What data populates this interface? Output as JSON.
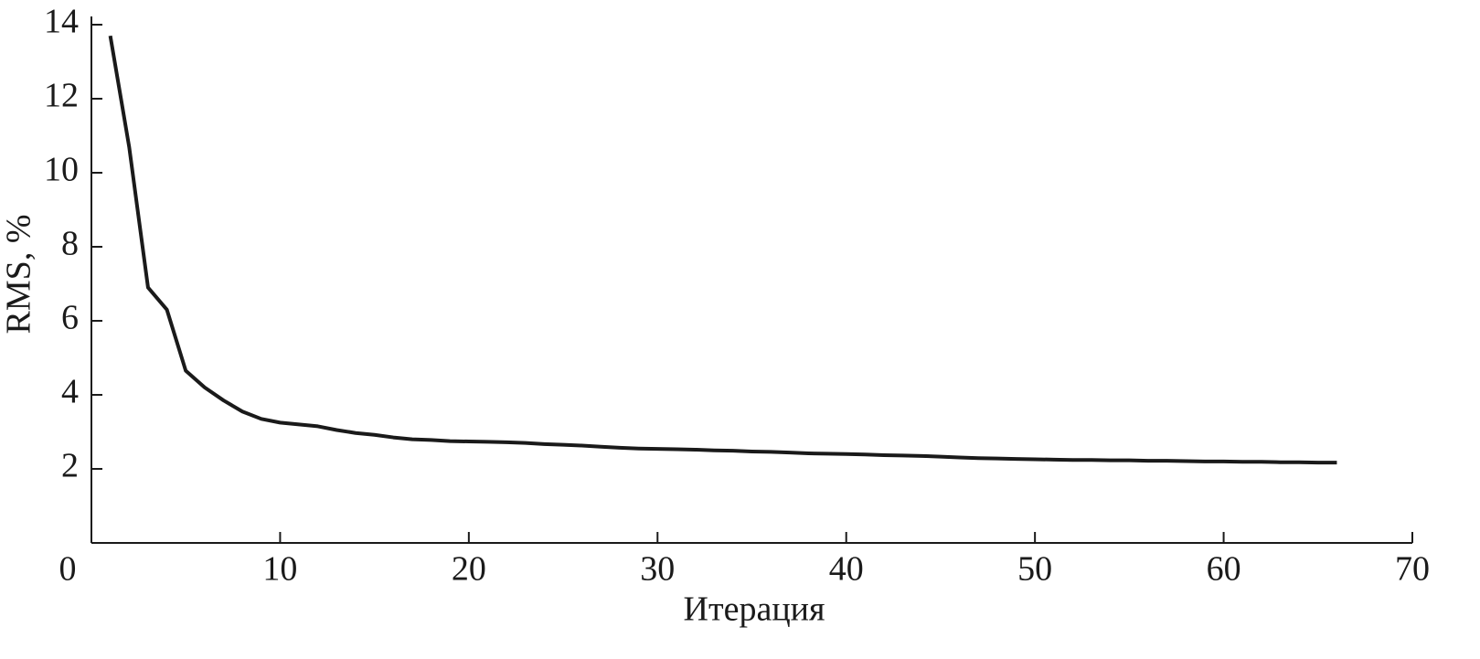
{
  "chart_data": {
    "type": "line",
    "x_label": "Итерация",
    "y_label": "RMS, %",
    "x": [
      1,
      2,
      3,
      4,
      5,
      6,
      7,
      8,
      9,
      10,
      11,
      12,
      13,
      14,
      15,
      16,
      17,
      18,
      19,
      20,
      21,
      22,
      23,
      24,
      25,
      26,
      27,
      28,
      29,
      30,
      31,
      32,
      33,
      34,
      35,
      36,
      37,
      38,
      39,
      40,
      41,
      42,
      43,
      44,
      45,
      46,
      47,
      48,
      49,
      50,
      51,
      52,
      53,
      54,
      55,
      56,
      57,
      58,
      59,
      60,
      61,
      62,
      63,
      64,
      65,
      66
    ],
    "series": [
      {
        "color": "#1a1a1a",
        "values": [
          13.7,
          10.7,
          6.9,
          6.3,
          4.65,
          4.2,
          3.85,
          3.55,
          3.35,
          3.25,
          3.2,
          3.15,
          3.05,
          2.97,
          2.92,
          2.85,
          2.8,
          2.78,
          2.75,
          2.74,
          2.73,
          2.72,
          2.7,
          2.67,
          2.65,
          2.63,
          2.6,
          2.57,
          2.55,
          2.54,
          2.53,
          2.52,
          2.5,
          2.49,
          2.47,
          2.46,
          2.44,
          2.42,
          2.41,
          2.4,
          2.39,
          2.37,
          2.36,
          2.35,
          2.33,
          2.31,
          2.29,
          2.28,
          2.27,
          2.26,
          2.25,
          2.24,
          2.24,
          2.23,
          2.23,
          2.22,
          2.22,
          2.21,
          2.2,
          2.2,
          2.19,
          2.19,
          2.18,
          2.18,
          2.17,
          2.17
        ]
      }
    ],
    "xlim": [
      0,
      70
    ],
    "xticks": [
      0,
      10,
      20,
      30,
      40,
      50,
      60,
      70
    ],
    "ylim": [
      0,
      14
    ],
    "yticks": [
      2,
      4,
      6,
      8,
      10,
      12,
      14
    ]
  }
}
